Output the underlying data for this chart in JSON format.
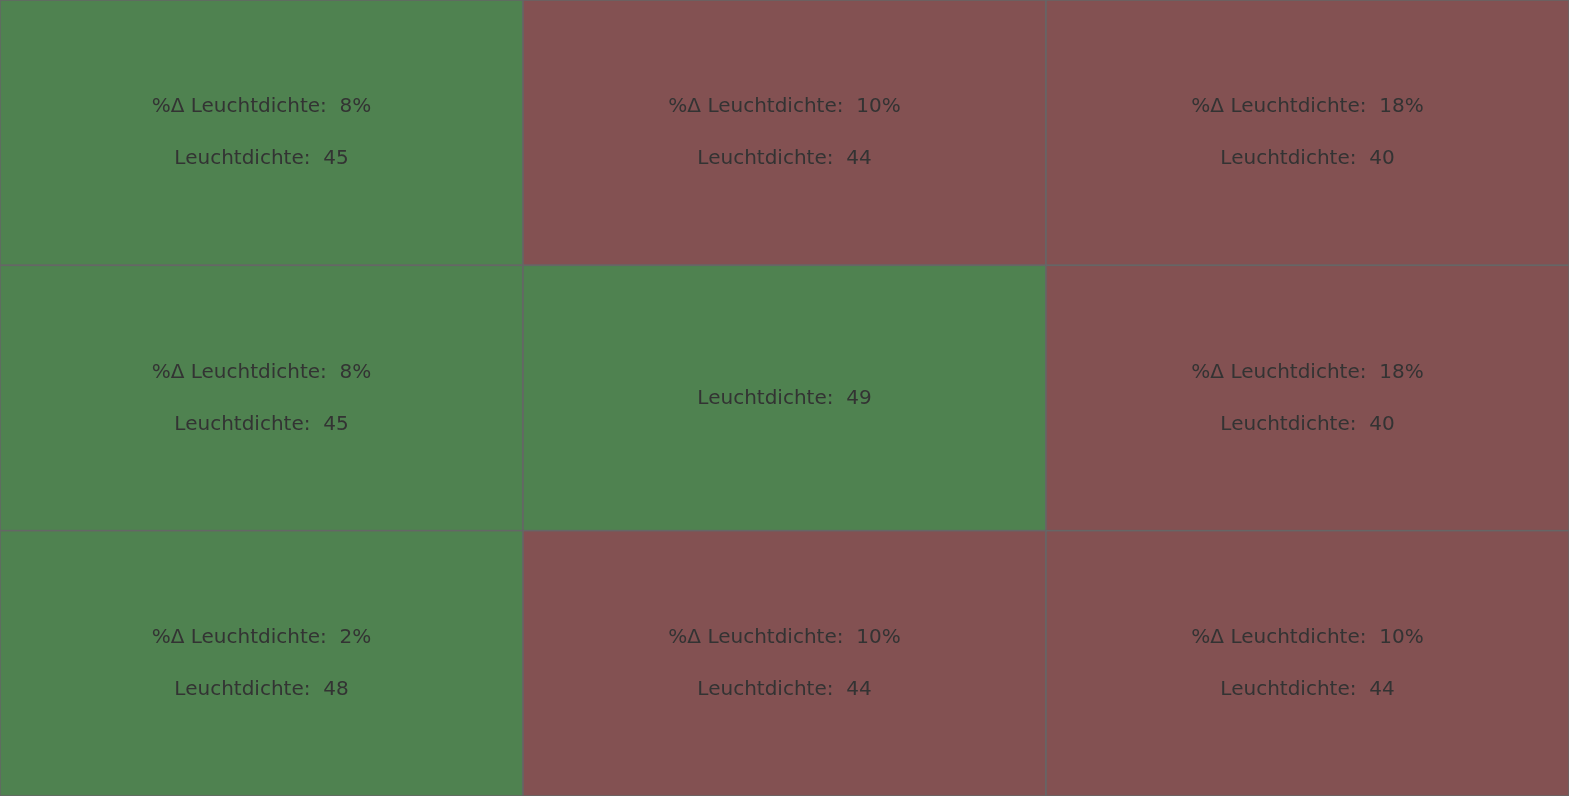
{
  "chart_data": {
    "type": "heatmap",
    "categories": [
      null,
      null,
      null
    ],
    "y_categories": [
      null,
      null,
      null
    ],
    "cells": [
      [
        45,
        44,
        40
      ],
      [
        45,
        49,
        40
      ],
      [
        48,
        44,
        44
      ]
    ],
    "cell_labels": [
      [
        "Leuchtdichte:  45",
        "Leuchtdichte:  44",
        "Leuchtdichte:  40"
      ],
      [
        "Leuchtdichte:  45",
        "Leuchtdichte:  49",
        "Leuchtdichte:  40"
      ],
      [
        "Leuchtdichte:  48",
        "Leuchtdichte:  44",
        "Leuchtdichte:  44"
      ]
    ],
    "annotations": [
      "%Δ Leuchtdichte:  8%",
      "%Δ Leuchtdichte:  10%",
      "%Δ Leuchtdichte:  18%",
      "%Δ Leuchtdichte:  8%",
      null,
      "%Δ Leuchtdichte:  18%",
      "%Δ Leuchtdichte:  2%",
      "%Δ Leuchtdichte:  10%",
      "%Δ Leuchtdichte:  10%"
    ],
    "colors": [
      [
        "#4f8250",
        "#835152",
        "#835152"
      ],
      [
        "#4f8250",
        "#4f8250",
        "#835152"
      ],
      [
        "#4f8250",
        "#835152",
        "#835152"
      ]
    ]
  }
}
